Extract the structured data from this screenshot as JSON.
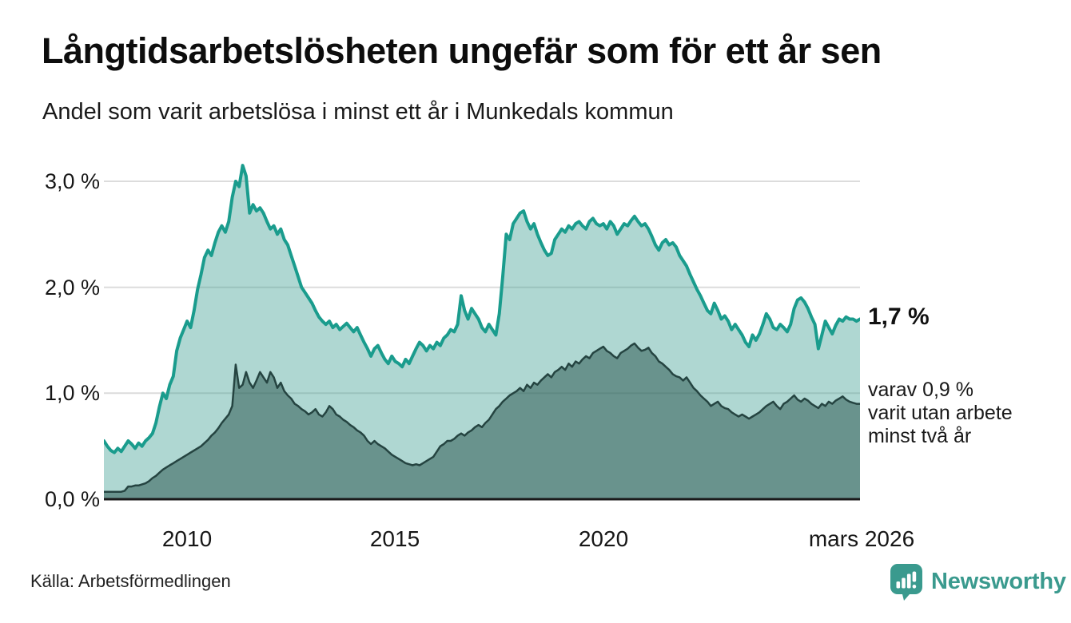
{
  "header": {
    "title": "Långtidsarbetslösheten ungefär som för ett år sen",
    "subtitle": "Andel som varit arbetslösa i minst ett år i Munkedals kommun"
  },
  "annotations": {
    "latest_value": "1,7 %",
    "secondary_note_lines": [
      "varav 0,9 %",
      "varit utan arbete",
      "minst två år"
    ]
  },
  "footer": {
    "source": "Källa: Arbetsförmedlingen",
    "brand": "Newsworthy",
    "brand_icon": "newsworthy-badge-bar-chart-icon"
  },
  "colors": {
    "gridline": "#dcdcdc",
    "axis": "#1a1a1a",
    "brand": "#3a9a8e",
    "title_text": "#0d0d0d",
    "body_text": "#161616"
  },
  "chart_data": {
    "type": "area",
    "title": "Långtidsarbetslösheten ungefär som för ett år sen",
    "subtitle": "Andel som varit arbetslösa i minst ett år i Munkedals kommun",
    "unit": "%",
    "x_start": "2008-01",
    "x_end": "2026-03",
    "x_frequency": "monthly",
    "ylim": [
      0,
      3.26
    ],
    "grid": "horizontal",
    "legend_position": "none",
    "y_ticks": [
      {
        "label": "0,0 %",
        "value": 0
      },
      {
        "label": "1,0 %",
        "value": 1
      },
      {
        "label": "2,0 %",
        "value": 2
      },
      {
        "label": "3,0 %",
        "value": 3
      }
    ],
    "x_ticks": [
      {
        "label": "2010",
        "month_index": 24
      },
      {
        "label": "2015",
        "month_index": 84
      },
      {
        "label": "2020",
        "month_index": 144
      },
      {
        "label": "mars 2026",
        "month_index": 218
      }
    ],
    "series": [
      {
        "id": "unemployed-min-one-year",
        "name": "Andel arbetslösa minst ett år",
        "latest_value": 1.7,
        "stroke": "#1a9c8d",
        "fill": "rgba(64,160,148,0.42)",
        "values": [
          0.55,
          0.5,
          0.46,
          0.44,
          0.48,
          0.45,
          0.5,
          0.55,
          0.52,
          0.48,
          0.53,
          0.5,
          0.55,
          0.58,
          0.62,
          0.72,
          0.87,
          1.0,
          0.95,
          1.08,
          1.16,
          1.4,
          1.52,
          1.6,
          1.68,
          1.62,
          1.78,
          1.98,
          2.12,
          2.28,
          2.35,
          2.3,
          2.42,
          2.52,
          2.58,
          2.52,
          2.62,
          2.85,
          3.0,
          2.95,
          3.15,
          3.05,
          2.7,
          2.78,
          2.72,
          2.75,
          2.7,
          2.62,
          2.55,
          2.58,
          2.5,
          2.55,
          2.45,
          2.4,
          2.3,
          2.2,
          2.1,
          2.0,
          1.95,
          1.9,
          1.85,
          1.78,
          1.72,
          1.68,
          1.65,
          1.68,
          1.62,
          1.65,
          1.6,
          1.63,
          1.66,
          1.62,
          1.58,
          1.62,
          1.55,
          1.48,
          1.42,
          1.35,
          1.42,
          1.45,
          1.38,
          1.32,
          1.28,
          1.35,
          1.3,
          1.28,
          1.25,
          1.32,
          1.28,
          1.35,
          1.42,
          1.48,
          1.45,
          1.4,
          1.45,
          1.42,
          1.48,
          1.45,
          1.52,
          1.55,
          1.6,
          1.58,
          1.65,
          1.92,
          1.78,
          1.7,
          1.8,
          1.75,
          1.7,
          1.62,
          1.58,
          1.65,
          1.6,
          1.55,
          1.75,
          2.1,
          2.5,
          2.45,
          2.6,
          2.65,
          2.7,
          2.72,
          2.62,
          2.55,
          2.6,
          2.5,
          2.42,
          2.35,
          2.3,
          2.32,
          2.45,
          2.5,
          2.55,
          2.52,
          2.58,
          2.55,
          2.6,
          2.62,
          2.58,
          2.55,
          2.62,
          2.65,
          2.6,
          2.58,
          2.6,
          2.55,
          2.62,
          2.58,
          2.5,
          2.55,
          2.6,
          2.58,
          2.63,
          2.67,
          2.62,
          2.58,
          2.6,
          2.55,
          2.48,
          2.4,
          2.35,
          2.42,
          2.45,
          2.4,
          2.42,
          2.38,
          2.3,
          2.25,
          2.2,
          2.12,
          2.05,
          1.98,
          1.92,
          1.85,
          1.78,
          1.75,
          1.85,
          1.78,
          1.7,
          1.73,
          1.68,
          1.6,
          1.65,
          1.6,
          1.55,
          1.48,
          1.44,
          1.55,
          1.5,
          1.56,
          1.65,
          1.75,
          1.7,
          1.62,
          1.6,
          1.65,
          1.62,
          1.58,
          1.65,
          1.8,
          1.88,
          1.9,
          1.86,
          1.8,
          1.72,
          1.65,
          1.42,
          1.55,
          1.68,
          1.62,
          1.56,
          1.64,
          1.7,
          1.68,
          1.72,
          1.7,
          1.7,
          1.68,
          1.7
        ]
      },
      {
        "id": "unemployed-min-two-years",
        "name": "Varav arbetslösa minst två år",
        "latest_value": 0.9,
        "stroke": "#254441",
        "fill": "rgba(36,80,72,0.5)",
        "values": [
          0.07,
          0.07,
          0.07,
          0.07,
          0.07,
          0.07,
          0.08,
          0.12,
          0.12,
          0.13,
          0.13,
          0.14,
          0.15,
          0.17,
          0.2,
          0.22,
          0.25,
          0.28,
          0.3,
          0.32,
          0.34,
          0.36,
          0.38,
          0.4,
          0.42,
          0.44,
          0.46,
          0.48,
          0.5,
          0.53,
          0.56,
          0.6,
          0.63,
          0.67,
          0.72,
          0.76,
          0.8,
          0.88,
          1.27,
          1.05,
          1.08,
          1.2,
          1.1,
          1.05,
          1.12,
          1.2,
          1.15,
          1.1,
          1.2,
          1.15,
          1.05,
          1.1,
          1.02,
          0.98,
          0.95,
          0.9,
          0.88,
          0.85,
          0.83,
          0.8,
          0.82,
          0.85,
          0.8,
          0.78,
          0.82,
          0.88,
          0.85,
          0.8,
          0.78,
          0.75,
          0.73,
          0.7,
          0.68,
          0.65,
          0.63,
          0.6,
          0.55,
          0.52,
          0.55,
          0.52,
          0.5,
          0.48,
          0.45,
          0.42,
          0.4,
          0.38,
          0.36,
          0.34,
          0.33,
          0.32,
          0.33,
          0.32,
          0.34,
          0.36,
          0.38,
          0.4,
          0.45,
          0.5,
          0.52,
          0.55,
          0.55,
          0.57,
          0.6,
          0.62,
          0.6,
          0.63,
          0.65,
          0.68,
          0.7,
          0.68,
          0.72,
          0.75,
          0.8,
          0.85,
          0.88,
          0.92,
          0.95,
          0.98,
          1.0,
          1.02,
          1.05,
          1.02,
          1.08,
          1.05,
          1.1,
          1.08,
          1.12,
          1.15,
          1.18,
          1.15,
          1.2,
          1.22,
          1.25,
          1.22,
          1.28,
          1.25,
          1.3,
          1.28,
          1.32,
          1.35,
          1.33,
          1.38,
          1.4,
          1.42,
          1.44,
          1.4,
          1.38,
          1.35,
          1.33,
          1.38,
          1.4,
          1.42,
          1.45,
          1.47,
          1.43,
          1.4,
          1.41,
          1.43,
          1.38,
          1.35,
          1.3,
          1.28,
          1.25,
          1.22,
          1.18,
          1.16,
          1.15,
          1.12,
          1.15,
          1.1,
          1.05,
          1.02,
          0.98,
          0.95,
          0.92,
          0.88,
          0.9,
          0.92,
          0.88,
          0.86,
          0.85,
          0.82,
          0.8,
          0.78,
          0.8,
          0.78,
          0.76,
          0.78,
          0.8,
          0.82,
          0.85,
          0.88,
          0.9,
          0.92,
          0.88,
          0.85,
          0.9,
          0.92,
          0.95,
          0.98,
          0.94,
          0.92,
          0.95,
          0.93,
          0.9,
          0.88,
          0.86,
          0.9,
          0.88,
          0.92,
          0.9,
          0.93,
          0.95,
          0.97,
          0.94,
          0.92,
          0.91,
          0.9,
          0.9
        ]
      }
    ]
  }
}
